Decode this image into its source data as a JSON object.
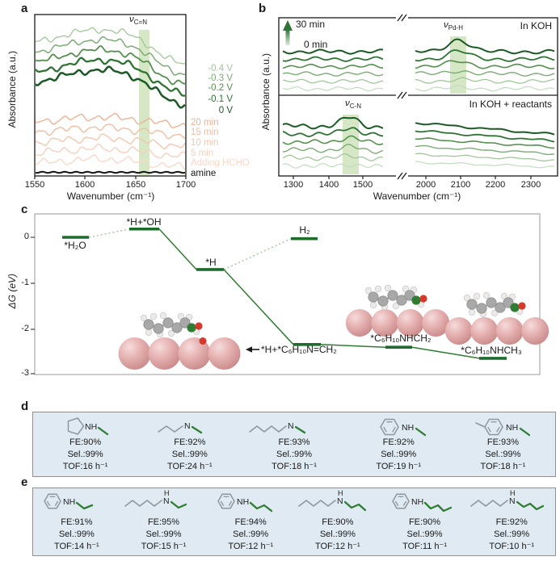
{
  "colors": {
    "accent_green": "#1e6b2d",
    "connector_green": "#2e7d32",
    "connector_light": "#9bc498",
    "highlight_band": "#b2d393",
    "results_box_bg": "#dfeaf2",
    "pd_sphere": "#e7b3b3",
    "b_curve_colors": [
      "#1b5a25",
      "#2f7434",
      "#55904f",
      "#7dab76",
      "#a3c69c",
      "#c3dcbf"
    ]
  },
  "figure": {
    "panels": {
      "a": {
        "letter": "a",
        "ylabel": "Absorbance (a.u.)",
        "xlabel": "Wavenumber (cm⁻¹)",
        "xticks": [
          "1550",
          "1600",
          "1650",
          "1700"
        ],
        "band": {
          "sym": "ν",
          "sub": "C=N"
        },
        "series": [
          {
            "label": "-0.4 V",
            "color": "#a3c69c"
          },
          {
            "label": "-0.3 V",
            "color": "#7dab76"
          },
          {
            "label": "-0.2 V",
            "color": "#55904f"
          },
          {
            "label": "-0.1 V",
            "color": "#2f7434"
          },
          {
            "label": "0 V",
            "color": "#1b5a25"
          },
          {
            "label": "20 min",
            "color": "#eeb394"
          },
          {
            "label": "15 min",
            "color": "#f1bda2"
          },
          {
            "label": "10 min",
            "color": "#f4c7b0"
          },
          {
            "label": "5 min",
            "color": "#f6d0be"
          },
          {
            "label": "Adding HCHO",
            "color": "#f8d9ca"
          },
          {
            "label": "amine",
            "color": "#151515"
          }
        ]
      },
      "b": {
        "letter": "b",
        "ylabel": "Absorbance (a.u.)",
        "xlabel": "Wavenumber (cm⁻¹)",
        "arrow_top_label": "30 min",
        "arrow_bottom_label": "0 min",
        "top_condition": "In KOH",
        "bottom_condition": "In KOH + reactants",
        "band_top": {
          "sym": "ν",
          "sub": "Pd-H"
        },
        "band_bottom": {
          "sym": "ν",
          "sub": "C-N"
        },
        "xticks_left": [
          "1300",
          "1400",
          "1500"
        ],
        "xticks_right": [
          "2000",
          "2100",
          "2200",
          "2300"
        ]
      },
      "c": {
        "letter": "c",
        "ylabel": "ΔG (eV)",
        "yticks": [
          "0",
          "-1",
          "-2",
          "-3"
        ],
        "arrow_label": "*H+*C₆H₁₀N=CH₂",
        "levels": [
          {
            "label": "*H₂O",
            "g_eV": 0.0
          },
          {
            "label": "*H+*OH",
            "g_eV": 0.18
          },
          {
            "label": "*H",
            "g_eV": -0.7
          },
          {
            "label": "H₂",
            "g_eV": -0.03
          },
          {
            "label": "*H+*C₆H₁₀N=CH₂",
            "g_eV": -2.33
          },
          {
            "label": "*C₆H₁₀NHCH₂",
            "g_eV": -2.39
          },
          {
            "label": "*C₆H₁₀NHCH₃",
            "g_eV": -2.63
          }
        ]
      },
      "d": {
        "letter": "d",
        "items": [
          {
            "molecule": "cyclopentylamine + N-methyl",
            "fe": "FE:90%",
            "sel": "Sel.:99%",
            "tof": "TOF:16 h⁻¹"
          },
          {
            "molecule": "butylamine + N-methyl",
            "fe": "FE:92%",
            "sel": "Sel.:99%",
            "tof": "TOF:24 h⁻¹"
          },
          {
            "molecule": "hexylamine + N-methyl",
            "fe": "FE:93%",
            "sel": "Sel.:99%",
            "tof": "TOF:18 h⁻¹"
          },
          {
            "molecule": "aniline + N-methyl",
            "fe": "FE:92%",
            "sel": "Sel.:99%",
            "tof": "TOF:19 h⁻¹"
          },
          {
            "molecule": "p-toluidine + N-methyl",
            "fe": "FE:93%",
            "sel": "Sel.:99%",
            "tof": "TOF:18 h⁻¹"
          }
        ]
      },
      "e": {
        "letter": "e",
        "items": [
          {
            "molecule": "aniline + N-ethyl",
            "fe": "FE:91%",
            "sel": "Sel.:99%",
            "tof": "TOF:14 h⁻¹"
          },
          {
            "molecule": "hexylamine + N-ethyl",
            "fe": "FE:95%",
            "sel": "Sel.:99%",
            "tof": "TOF:15 h⁻¹"
          },
          {
            "molecule": "aniline + N-propyl",
            "fe": "FE:94%",
            "sel": "Sel.:99%",
            "tof": "TOF:12 h⁻¹"
          },
          {
            "molecule": "hexylamine + N-propyl",
            "fe": "FE:90%",
            "sel": "Sel.:99%",
            "tof": "TOF:12 h⁻¹"
          },
          {
            "molecule": "aniline + N-butyl",
            "fe": "FE:90%",
            "sel": "Sel.:99%",
            "tof": "TOF:11 h⁻¹"
          },
          {
            "molecule": "hexylamine + N-butyl",
            "fe": "FE:92%",
            "sel": "Sel.:99%",
            "tof": "TOF:10 h⁻¹"
          }
        ]
      }
    }
  },
  "chart_data": [
    {
      "type": "line",
      "panel": "a",
      "title": "In-situ IR spectra during amine methylation",
      "xlabel": "Wavenumber (cm⁻¹)",
      "ylabel": "Absorbance (a.u.)",
      "xlim": [
        1550,
        1700
      ],
      "highlight_band": {
        "label": "ν(C=N)",
        "range_cm": [
          1650,
          1665
        ]
      },
      "series_labels": [
        "-0.4 V",
        "-0.3 V",
        "-0.2 V",
        "-0.1 V",
        "0 V",
        "20 min",
        "15 min",
        "10 min",
        "5 min",
        "Adding HCHO",
        "amine"
      ],
      "note": "stacked offset spectra; green = potential series with C=N band, peach = time series after adding HCHO, black = amine baseline"
    },
    {
      "type": "line",
      "panel": "b",
      "xlabel": "Wavenumber (cm⁻¹)",
      "ylabel": "Absorbance (a.u.)",
      "x_segments": [
        [
          1250,
          1550
        ],
        [
          1950,
          2300
        ]
      ],
      "time_series": {
        "from": "0 min",
        "to": "30 min",
        "n_curves": 6
      },
      "subpanels": [
        {
          "condition": "In KOH",
          "highlight_band": {
            "label": "ν(Pd-H)",
            "center_cm": 2090
          }
        },
        {
          "condition": "In KOH + reactants",
          "highlight_band": {
            "label": "ν(C-N)",
            "center_cm": 1450
          }
        }
      ]
    },
    {
      "type": "energy-diagram",
      "panel": "c",
      "ylabel": "ΔG (eV)",
      "ylim": [
        -3,
        0.5
      ],
      "levels": [
        [
          "*H₂O",
          0.0
        ],
        [
          "*H+*OH",
          0.18
        ],
        [
          "*H",
          -0.7
        ],
        [
          "H₂",
          -0.03
        ],
        [
          "*H+*C₆H₁₀N=CH₂",
          -2.33
        ],
        [
          "*C₆H₁₀NHCH₂",
          -2.39
        ],
        [
          "*C₆H₁₀NHCH₃",
          -2.63
        ]
      ],
      "paths": [
        [
          "*H₂O",
          "*H+*OH",
          "dotted"
        ],
        [
          "*H+*OH",
          "*H",
          "solid"
        ],
        [
          "*H",
          "H₂",
          "dotted"
        ],
        [
          "*H",
          "*H+*C₆H₁₀N=CH₂",
          "solid"
        ],
        [
          "*H+*C₆H₁₀N=CH₂",
          "*C₆H₁₀NHCH₂",
          "solid"
        ],
        [
          "*C₆H₁₀NHCH₂",
          "*C₆H₁₀NHCH₃",
          "solid"
        ]
      ]
    }
  ]
}
